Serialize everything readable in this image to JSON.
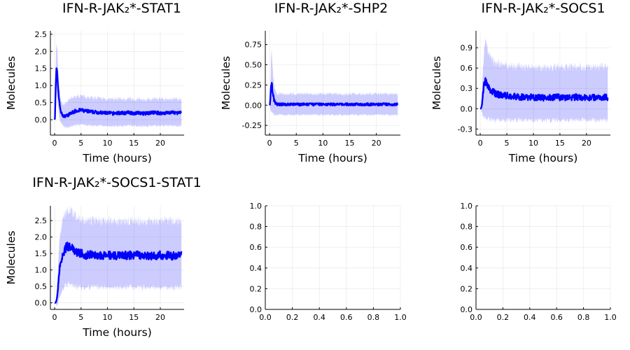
{
  "figure": {
    "series_color": "#0000ff",
    "band_color": "#0000ff"
  },
  "chart_data": [
    {
      "type": "line",
      "title": "IFN-R-JAK₂*-STAT1",
      "xlabel": "Time (hours)",
      "ylabel": "Molecules",
      "xlim": [
        -0.8,
        24.5
      ],
      "ylim": [
        -0.45,
        2.6
      ],
      "xticks": [
        0,
        5,
        10,
        15,
        20
      ],
      "xtick_labels": [
        "0",
        "5",
        "10",
        "15",
        "20"
      ],
      "yticks": [
        0.0,
        0.5,
        1.0,
        1.5,
        2.0,
        2.5
      ],
      "ytick_labels": [
        "0.0",
        "0.5",
        "1.0",
        "1.5",
        "2.0",
        "2.5"
      ],
      "grid": true,
      "series": [
        {
          "x": [
            0,
            0.05,
            0.2,
            0.35,
            0.5,
            0.7,
            0.9,
            1.2,
            1.5,
            1.8,
            2.2,
            2.6,
            3,
            3.5,
            4,
            4.5,
            5,
            5.5,
            6,
            7,
            8,
            9,
            10,
            11,
            12,
            13,
            14,
            15,
            16,
            17,
            18,
            19,
            20,
            21,
            22,
            23,
            24
          ],
          "mean": [
            0.0,
            0.0,
            0.9,
            1.5,
            1.3,
            0.85,
            0.5,
            0.22,
            0.12,
            0.1,
            0.12,
            0.14,
            0.18,
            0.22,
            0.26,
            0.27,
            0.28,
            0.26,
            0.25,
            0.23,
            0.22,
            0.2,
            0.2,
            0.18,
            0.2,
            0.19,
            0.21,
            0.19,
            0.2,
            0.18,
            0.2,
            0.21,
            0.19,
            0.2,
            0.21,
            0.2,
            0.2
          ],
          "lower": [
            0.0,
            0.0,
            0.2,
            0.8,
            0.6,
            0.3,
            0.05,
            -0.1,
            -0.15,
            -0.2,
            -0.22,
            -0.22,
            -0.2,
            -0.18,
            -0.16,
            -0.15,
            -0.15,
            -0.16,
            -0.16,
            -0.17,
            -0.17,
            -0.18,
            -0.18,
            -0.19,
            -0.18,
            -0.18,
            -0.17,
            -0.18,
            -0.18,
            -0.19,
            -0.18,
            -0.17,
            -0.18,
            -0.18,
            -0.17,
            -0.18,
            -0.18
          ],
          "upper": [
            0.0,
            0.0,
            1.6,
            2.3,
            2.0,
            1.4,
            0.95,
            0.55,
            0.45,
            0.45,
            0.5,
            0.55,
            0.6,
            0.65,
            0.68,
            0.7,
            0.7,
            0.68,
            0.67,
            0.65,
            0.63,
            0.62,
            0.6,
            0.6,
            0.61,
            0.6,
            0.62,
            0.6,
            0.6,
            0.59,
            0.6,
            0.62,
            0.6,
            0.6,
            0.61,
            0.6,
            0.6
          ]
        }
      ]
    },
    {
      "type": "line",
      "title": "IFN-R-JAK₂*-SHP2",
      "xlabel": "Time (hours)",
      "ylabel": "Molecules",
      "xlim": [
        -0.8,
        24.5
      ],
      "ylim": [
        -0.37,
        0.92
      ],
      "xticks": [
        0,
        5,
        10,
        15,
        20
      ],
      "xtick_labels": [
        "0",
        "5",
        "10",
        "15",
        "20"
      ],
      "yticks": [
        -0.25,
        0.0,
        0.25,
        0.5,
        0.75
      ],
      "ytick_labels": [
        "-0.25",
        "0.00",
        "0.25",
        "0.50",
        "0.75"
      ],
      "grid": true,
      "series": [
        {
          "x": [
            0,
            0.05,
            0.2,
            0.35,
            0.5,
            0.7,
            0.9,
            1.2,
            1.5,
            2,
            3,
            4,
            5,
            6,
            8,
            10,
            12,
            14,
            16,
            18,
            20,
            22,
            24
          ],
          "mean": [
            0.0,
            0.0,
            0.12,
            0.28,
            0.22,
            0.12,
            0.05,
            0.02,
            0.01,
            0.01,
            0.01,
            0.01,
            0.01,
            0.01,
            0.01,
            0.01,
            0.01,
            0.01,
            0.01,
            0.01,
            0.01,
            0.01,
            0.01
          ],
          "lower": [
            0.0,
            0.0,
            -0.1,
            -0.05,
            -0.08,
            -0.12,
            -0.12,
            -0.12,
            -0.12,
            -0.12,
            -0.12,
            -0.12,
            -0.12,
            -0.12,
            -0.12,
            -0.12,
            -0.12,
            -0.12,
            -0.12,
            -0.12,
            -0.12,
            -0.12,
            -0.12
          ],
          "upper": [
            0.0,
            0.0,
            0.35,
            0.7,
            0.55,
            0.35,
            0.22,
            0.16,
            0.14,
            0.14,
            0.14,
            0.14,
            0.14,
            0.14,
            0.14,
            0.14,
            0.14,
            0.14,
            0.14,
            0.14,
            0.14,
            0.14,
            0.14
          ]
        }
      ]
    },
    {
      "type": "line",
      "title": "IFN-R-JAK₂*-SOCS1",
      "xlabel": "Time (hours)",
      "ylabel": "Molecules",
      "xlim": [
        -0.8,
        24.5
      ],
      "ylim": [
        -0.39,
        1.15
      ],
      "xticks": [
        0,
        5,
        10,
        15,
        20
      ],
      "xtick_labels": [
        "0",
        "5",
        "10",
        "15",
        "20"
      ],
      "yticks": [
        -0.3,
        0.0,
        0.3,
        0.6,
        0.9
      ],
      "ytick_labels": [
        "-0.3",
        "0.0",
        "0.3",
        "0.6",
        "0.9"
      ],
      "grid": true,
      "series": [
        {
          "x": [
            0,
            0.1,
            0.3,
            0.5,
            0.7,
            1.0,
            1.3,
            1.6,
            2,
            2.5,
            3,
            4,
            5,
            6,
            7,
            8,
            10,
            12,
            14,
            16,
            18,
            20,
            22,
            24
          ],
          "mean": [
            0.0,
            0.0,
            0.05,
            0.2,
            0.38,
            0.42,
            0.36,
            0.3,
            0.26,
            0.24,
            0.22,
            0.2,
            0.19,
            0.18,
            0.18,
            0.17,
            0.17,
            0.16,
            0.17,
            0.16,
            0.17,
            0.16,
            0.17,
            0.17
          ],
          "lower": [
            0.0,
            0.0,
            -0.05,
            -0.1,
            -0.12,
            -0.14,
            -0.15,
            -0.16,
            -0.16,
            -0.17,
            -0.17,
            -0.17,
            -0.17,
            -0.17,
            -0.17,
            -0.17,
            -0.17,
            -0.17,
            -0.17,
            -0.17,
            -0.17,
            -0.17,
            -0.17,
            -0.17
          ],
          "upper": [
            0.0,
            0.0,
            0.25,
            0.55,
            0.85,
            0.98,
            0.92,
            0.82,
            0.75,
            0.7,
            0.68,
            0.66,
            0.64,
            0.63,
            0.63,
            0.62,
            0.62,
            0.61,
            0.62,
            0.61,
            0.62,
            0.61,
            0.62,
            0.62
          ]
        }
      ]
    },
    {
      "type": "line",
      "title": "IFN-R-JAK₂*-SOCS1-STAT1",
      "xlabel": "Time (hours)",
      "ylabel": "Molecules",
      "xlim": [
        -0.8,
        24.5
      ],
      "ylim": [
        -0.2,
        2.95
      ],
      "xticks": [
        0,
        5,
        10,
        15,
        20
      ],
      "xtick_labels": [
        "0",
        "5",
        "10",
        "15",
        "20"
      ],
      "yticks": [
        0.0,
        0.5,
        1.0,
        1.5,
        2.0,
        2.5
      ],
      "ytick_labels": [
        "0.0",
        "0.5",
        "1.0",
        "1.5",
        "2.0",
        "2.5"
      ],
      "grid": true,
      "series": [
        {
          "x": [
            0,
            0.2,
            0.4,
            0.6,
            0.8,
            1.0,
            1.3,
            1.6,
            2.0,
            2.4,
            2.8,
            3.2,
            4,
            5,
            6,
            7,
            8,
            9,
            10,
            12,
            14,
            16,
            18,
            20,
            22,
            24
          ],
          "mean": [
            0.0,
            0.0,
            0.1,
            0.4,
            0.8,
            1.1,
            1.35,
            1.5,
            1.65,
            1.72,
            1.7,
            1.65,
            1.55,
            1.5,
            1.45,
            1.48,
            1.45,
            1.42,
            1.45,
            1.42,
            1.45,
            1.45,
            1.42,
            1.45,
            1.43,
            1.45
          ],
          "lower": [
            0.0,
            0.0,
            -0.1,
            -0.05,
            0.1,
            0.2,
            0.35,
            0.45,
            0.5,
            0.55,
            0.55,
            0.53,
            0.5,
            0.48,
            0.46,
            0.48,
            0.47,
            0.46,
            0.47,
            0.46,
            0.47,
            0.47,
            0.46,
            0.47,
            0.46,
            0.47
          ],
          "upper": [
            0.0,
            0.0,
            0.3,
            0.9,
            1.5,
            2.0,
            2.35,
            2.6,
            2.75,
            2.8,
            2.8,
            2.75,
            2.65,
            2.55,
            2.5,
            2.52,
            2.5,
            2.48,
            2.5,
            2.47,
            2.5,
            2.5,
            2.47,
            2.5,
            2.48,
            2.5
          ]
        }
      ]
    },
    {
      "type": "line",
      "title": "",
      "xlabel": "",
      "ylabel": "",
      "xlim": [
        0,
        1
      ],
      "ylim": [
        0,
        1
      ],
      "xticks": [
        0,
        0.2,
        0.4,
        0.6,
        0.8,
        1.0
      ],
      "xtick_labels": [
        "0.0",
        "0.2",
        "0.4",
        "0.6",
        "0.8",
        "1.0"
      ],
      "yticks": [
        0,
        0.2,
        0.4,
        0.6,
        0.8,
        1.0
      ],
      "ytick_labels": [
        "0.0",
        "0.2",
        "0.4",
        "0.6",
        "0.8",
        "1.0"
      ],
      "grid": true,
      "series": []
    },
    {
      "type": "line",
      "title": "",
      "xlabel": "",
      "ylabel": "",
      "xlim": [
        0,
        1
      ],
      "ylim": [
        0,
        1
      ],
      "xticks": [
        0,
        0.2,
        0.4,
        0.6,
        0.8,
        1.0
      ],
      "xtick_labels": [
        "0.0",
        "0.2",
        "0.4",
        "0.6",
        "0.8",
        "1.0"
      ],
      "yticks": [
        0,
        0.2,
        0.4,
        0.6,
        0.8,
        1.0
      ],
      "ytick_labels": [
        "0.0",
        "0.2",
        "0.4",
        "0.6",
        "0.8",
        "1.0"
      ],
      "grid": true,
      "series": []
    }
  ]
}
